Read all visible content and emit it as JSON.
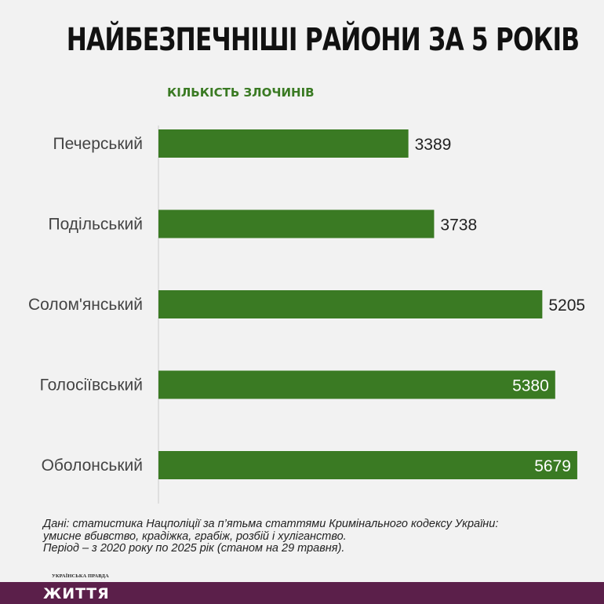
{
  "chart_data": {
    "type": "bar",
    "orientation": "horizontal",
    "title": "НАЙБЕЗПЕЧНІШІ РАЙОНИ ЗА 5 РОКІВ",
    "subtitle": "КІЛЬКІСТЬ ЗЛОЧИНІВ",
    "categories": [
      "Печерський",
      "Подільський",
      "Солом'янський",
      "Голосіївський",
      "Оболонський"
    ],
    "values": [
      3389,
      3738,
      5205,
      5380,
      5679
    ],
    "xlim": [
      0,
      5850
    ],
    "grid": false,
    "legend": "none"
  },
  "footnote": [
    "Дані: статистика Нацполіції за п’ятьма статтями Кримінального кодексу України:",
    "умисне вбивство, крадіжка, грабіж, розбій і хуліганство.",
    "Період – з 2020 року по 2025 рік (станом на 29 травня)."
  ],
  "brand": {
    "small": "УКРАЇНСЬКА ПРАВДА",
    "name": "ЖИТТЯ"
  },
  "colors": {
    "bar": "#3a7a23",
    "subtitle": "#3a7a23",
    "value_text": "#222222",
    "value_text_inside": "#ffffff",
    "brand_bar": "#5b1f4a"
  }
}
